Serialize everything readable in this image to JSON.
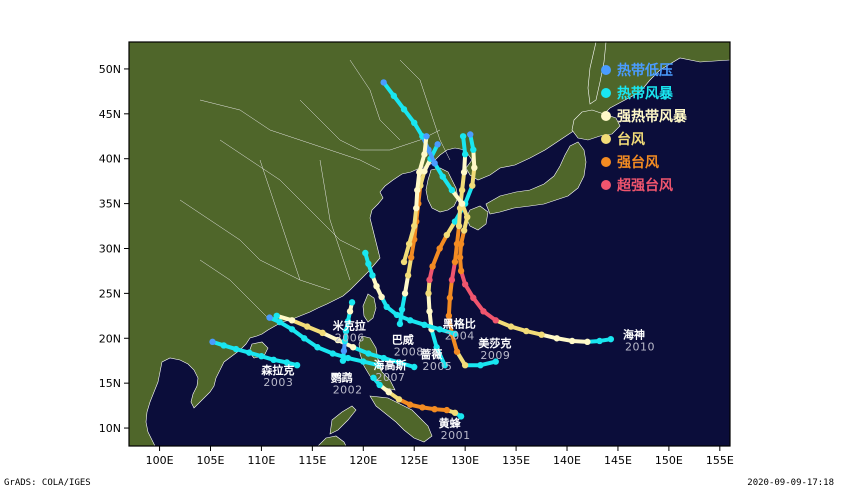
{
  "map": {
    "lon_range": [
      97,
      156
    ],
    "lat_range": [
      8,
      53
    ],
    "colors": {
      "ocean": "#0b0d3a",
      "land": "#4f662a",
      "border": "#e8e8e8",
      "frame": "#000000"
    }
  },
  "axes": {
    "x_ticks": [
      {
        "lon": 100,
        "label": "100E"
      },
      {
        "lon": 105,
        "label": "105E"
      },
      {
        "lon": 110,
        "label": "110E"
      },
      {
        "lon": 115,
        "label": "115E"
      },
      {
        "lon": 120,
        "label": "120E"
      },
      {
        "lon": 125,
        "label": "125E"
      },
      {
        "lon": 130,
        "label": "130E"
      },
      {
        "lon": 135,
        "label": "135E"
      },
      {
        "lon": 140,
        "label": "140E"
      },
      {
        "lon": 145,
        "label": "145E"
      },
      {
        "lon": 150,
        "label": "150E"
      },
      {
        "lon": 155,
        "label": "155E"
      }
    ],
    "y_ticks": [
      {
        "lat": 10,
        "label": "10N"
      },
      {
        "lat": 15,
        "label": "15N"
      },
      {
        "lat": 20,
        "label": "20N"
      },
      {
        "lat": 25,
        "label": "25N"
      },
      {
        "lat": 30,
        "label": "30N"
      },
      {
        "lat": 35,
        "label": "35N"
      },
      {
        "lat": 40,
        "label": "40N"
      },
      {
        "lat": 45,
        "label": "45N"
      },
      {
        "lat": 50,
        "label": "50N"
      }
    ]
  },
  "legend": [
    {
      "key": "TD",
      "label": "热带低压",
      "color": "#4a9cff"
    },
    {
      "key": "TS",
      "label": "热带风暴",
      "color": "#19e6f0"
    },
    {
      "key": "STS",
      "label": "强热带风暴",
      "color": "#fff9c8"
    },
    {
      "key": "TY",
      "label": "台风",
      "color": "#f2dc78"
    },
    {
      "key": "STY",
      "label": "强台风",
      "color": "#f38b22"
    },
    {
      "key": "SuperTY",
      "label": "超强台风",
      "color": "#f0556e"
    }
  ],
  "storms": [
    {
      "name": "黄蜂",
      "year": "2001",
      "label_pos": {
        "lon": 127.4,
        "lat": 10.1
      },
      "track": [
        [
          129.6,
          11.3,
          "TS"
        ],
        [
          129.0,
          11.7,
          "TY"
        ],
        [
          128.2,
          12.0,
          "STY"
        ],
        [
          127.0,
          12.1,
          "STY"
        ],
        [
          125.8,
          12.3,
          "STY"
        ],
        [
          124.6,
          12.6,
          "STY"
        ],
        [
          123.5,
          13.2,
          "TY"
        ],
        [
          122.5,
          14.0,
          "STS"
        ],
        [
          121.6,
          14.8,
          "TS"
        ],
        [
          121.0,
          15.6,
          "TS"
        ]
      ]
    },
    {
      "name": "森拉克",
      "year": "2003",
      "label_pos": {
        "lon": 110.0,
        "lat": 16.0
      },
      "track": [
        [
          113.5,
          17.0,
          "TS"
        ],
        [
          112.5,
          17.3,
          "TS"
        ],
        [
          111.2,
          17.6,
          "TS"
        ],
        [
          110.0,
          18.0,
          "TS"
        ],
        [
          108.8,
          18.4,
          "TS"
        ],
        [
          107.5,
          18.8,
          "TS"
        ],
        [
          106.3,
          19.2,
          "TS"
        ],
        [
          105.2,
          19.6,
          "TD"
        ]
      ]
    },
    {
      "name": "鹦鹉",
      "year": "2002",
      "label_pos": {
        "lon": 116.8,
        "lat": 15.2
      },
      "track": [
        [
          121.5,
          17.0,
          "TS"
        ],
        [
          120.0,
          17.4,
          "TS"
        ],
        [
          118.5,
          17.8,
          "TS"
        ],
        [
          117.0,
          18.3,
          "TS"
        ],
        [
          115.5,
          19.0,
          "TS"
        ],
        [
          114.2,
          20.0,
          "TS"
        ],
        [
          113.0,
          21.0,
          "TS"
        ],
        [
          111.8,
          21.8,
          "TS"
        ],
        [
          110.8,
          22.3,
          "TD"
        ]
      ]
    },
    {
      "name": "海高斯",
      "year": "2007",
      "label_pos": {
        "lon": 121.0,
        "lat": 16.6
      },
      "track": [
        [
          125.0,
          16.8,
          "TS"
        ],
        [
          123.5,
          17.3,
          "TS"
        ],
        [
          122.0,
          17.8,
          "TS"
        ],
        [
          120.5,
          18.3,
          "TS"
        ],
        [
          119.0,
          19.0,
          "STS"
        ],
        [
          117.5,
          19.8,
          "STS"
        ],
        [
          116.0,
          20.6,
          "TY"
        ],
        [
          114.5,
          21.3,
          "TY"
        ],
        [
          113.0,
          22.0,
          "STS"
        ],
        [
          111.5,
          22.5,
          "TS"
        ]
      ]
    },
    {
      "name": "米克拉",
      "year": "2006",
      "label_pos": {
        "lon": 117.0,
        "lat": 21.0
      },
      "track": [
        [
          118.0,
          17.5,
          "TS"
        ],
        [
          118.1,
          18.6,
          "TD"
        ],
        [
          118.2,
          19.7,
          "TS"
        ],
        [
          118.3,
          20.8,
          "TS"
        ],
        [
          118.5,
          21.9,
          "TS"
        ],
        [
          118.7,
          23.0,
          "STS"
        ],
        [
          118.9,
          24.0,
          "TS"
        ]
      ]
    },
    {
      "name": "巴威",
      "year": "2008",
      "label_pos": {
        "lon": 122.8,
        "lat": 19.4
      },
      "track": [
        [
          123.6,
          21.6,
          "TS"
        ],
        [
          123.8,
          23.2,
          "TS"
        ],
        [
          124.1,
          25.0,
          "STS"
        ],
        [
          124.4,
          27.0,
          "TY"
        ],
        [
          124.7,
          29.0,
          "STY"
        ],
        [
          125.0,
          31.0,
          "STY"
        ],
        [
          125.2,
          33.0,
          "STY"
        ],
        [
          125.4,
          35.0,
          "STY"
        ],
        [
          125.6,
          37.0,
          "TY"
        ],
        [
          126.0,
          38.6,
          "STS"
        ],
        [
          126.6,
          40.0,
          "TS"
        ],
        [
          127.3,
          41.6,
          "TD"
        ]
      ]
    },
    {
      "name": "蔷薇",
      "year": "2005",
      "label_pos": {
        "lon": 125.6,
        "lat": 17.8
      },
      "track": [
        [
          128.0,
          17.0,
          "TS"
        ],
        [
          127.2,
          19.0,
          "TS"
        ],
        [
          126.7,
          21.0,
          "STS"
        ],
        [
          126.5,
          23.0,
          "STS"
        ],
        [
          126.4,
          25.0,
          "TY"
        ],
        [
          126.5,
          26.5,
          "SuperTY"
        ],
        [
          126.8,
          28.0,
          "STY"
        ],
        [
          127.5,
          30.0,
          "STY"
        ],
        [
          128.2,
          31.5,
          "TY"
        ],
        [
          129.0,
          33.0,
          "TS"
        ],
        [
          130.0,
          35.0,
          "TS"
        ],
        [
          130.7,
          37.0,
          "TY"
        ],
        [
          130.9,
          39.0,
          "STS"
        ],
        [
          130.8,
          41.0,
          "TS"
        ],
        [
          130.5,
          42.7,
          "TD"
        ]
      ]
    },
    {
      "name": "美莎克",
      "year": "2009",
      "label_pos": {
        "lon": 131.3,
        "lat": 19.0
      },
      "track": [
        [
          133.0,
          17.4,
          "TS"
        ],
        [
          131.5,
          17.0,
          "TS"
        ],
        [
          130.0,
          17.0,
          "TY"
        ],
        [
          129.2,
          18.5,
          "STY"
        ],
        [
          128.7,
          20.5,
          "STY"
        ],
        [
          128.4,
          22.5,
          "STY"
        ],
        [
          128.5,
          24.5,
          "STY"
        ],
        [
          128.7,
          26.5,
          "SuperTY"
        ],
        [
          129.0,
          28.5,
          "STY"
        ],
        [
          129.2,
          30.5,
          "STY"
        ],
        [
          129.4,
          32.5,
          "TY"
        ],
        [
          129.5,
          34.5,
          "TY"
        ],
        [
          129.7,
          36.5,
          "TY"
        ],
        [
          129.9,
          38.5,
          "STS"
        ],
        [
          130.0,
          40.5,
          "TS"
        ],
        [
          129.8,
          42.5,
          "TS"
        ]
      ]
    },
    {
      "name": "黑格比",
      "year": "2004",
      "label_pos": {
        "lon": 127.8,
        "lat": 21.2
      },
      "track": [
        [
          129.0,
          20.5,
          "TS"
        ],
        [
          127.5,
          21.0,
          "TS"
        ],
        [
          126.0,
          21.5,
          "TS"
        ],
        [
          124.6,
          22.0,
          "TS"
        ],
        [
          123.3,
          22.6,
          "TS"
        ],
        [
          122.3,
          23.5,
          "TS"
        ],
        [
          121.8,
          24.6,
          "STS"
        ],
        [
          121.3,
          25.8,
          "STS"
        ],
        [
          120.9,
          27.0,
          "TS"
        ],
        [
          120.5,
          28.3,
          "TS"
        ],
        [
          120.2,
          29.5,
          "TS"
        ]
      ]
    },
    {
      "name": "海神",
      "year": "2010",
      "label_pos": {
        "lon": 145.5,
        "lat": 20.0
      },
      "track": [
        [
          144.3,
          19.9,
          "TS"
        ],
        [
          143.2,
          19.7,
          "TS"
        ],
        [
          142.0,
          19.6,
          "STS"
        ],
        [
          140.5,
          19.7,
          "STS"
        ],
        [
          139.0,
          20.0,
          "STS"
        ],
        [
          137.5,
          20.4,
          "TY"
        ],
        [
          136.0,
          20.8,
          "TY"
        ],
        [
          134.5,
          21.3,
          "TY"
        ],
        [
          133.0,
          22.0,
          "SuperTY"
        ],
        [
          131.8,
          23.0,
          "SuperTY"
        ],
        [
          130.8,
          24.5,
          "SuperTY"
        ],
        [
          130.0,
          26.0,
          "SuperTY"
        ],
        [
          129.6,
          27.5,
          "STY"
        ],
        [
          129.5,
          29.0,
          "STY"
        ],
        [
          129.6,
          30.5,
          "STY"
        ],
        [
          129.9,
          32.0,
          "TY"
        ],
        [
          130.2,
          33.5,
          "TY"
        ],
        [
          129.7,
          35.0,
          "STS"
        ],
        [
          128.7,
          36.5,
          "TS"
        ],
        [
          127.8,
          38.0,
          "TS"
        ],
        [
          127.0,
          39.5,
          "TD"
        ],
        [
          126.4,
          41.0,
          "TD"
        ],
        [
          125.8,
          42.5,
          "TS"
        ],
        [
          125.0,
          44.0,
          "TS"
        ],
        [
          124.0,
          45.5,
          "TS"
        ],
        [
          123.0,
          47.0,
          "TS"
        ],
        [
          122.0,
          48.5,
          "TD"
        ]
      ]
    },
    {
      "name": "",
      "year": "",
      "label_pos": null,
      "track": [
        [
          124.0,
          28.5,
          "TY"
        ],
        [
          124.5,
          30.5,
          "TY"
        ],
        [
          125.0,
          32.5,
          "TY"
        ],
        [
          125.2,
          34.5,
          "STS"
        ],
        [
          125.3,
          36.5,
          "STS"
        ],
        [
          125.5,
          38.5,
          "STS"
        ],
        [
          126.0,
          40.5,
          "STS"
        ],
        [
          126.2,
          42.5,
          "TD"
        ]
      ]
    }
  ],
  "footer": {
    "left": "GrADS: COLA/IGES",
    "right": "2020-09-09-17:18"
  }
}
